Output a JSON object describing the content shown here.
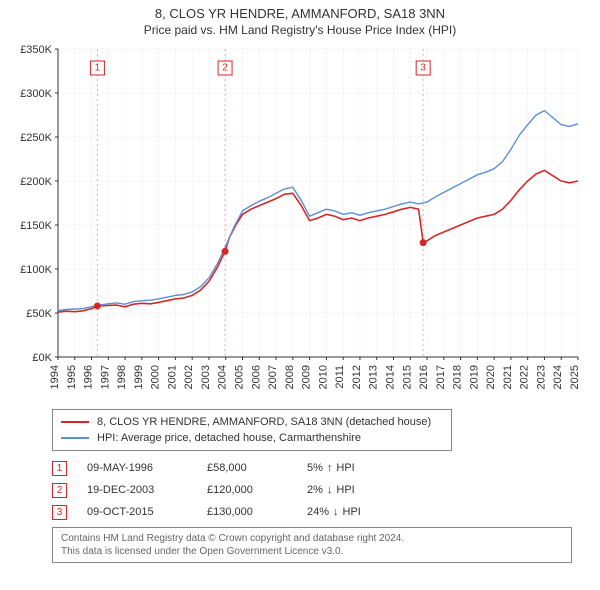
{
  "title": "8, CLOS YR HENDRE, AMMANFORD, SA18 3NN",
  "subtitle": "Price paid vs. HM Land Registry's House Price Index (HPI)",
  "chart": {
    "type": "line",
    "background_color": "#ffffff",
    "grid_color": "#dddddd",
    "axis_color": "#333333",
    "marker_rule_color": "#fca5a5",
    "y": {
      "min": 0,
      "max": 350000,
      "tick_step": 50000,
      "format_prefix": "£",
      "format_suffix": "K",
      "divide": 1000
    },
    "x": {
      "min": 1994,
      "max": 2025,
      "tick_step": 1
    },
    "series": [
      {
        "id": "price_paid",
        "label": "8, CLOS YR HENDRE, AMMANFORD, SA18 3NN (detached house)",
        "color": "#d62728",
        "width": 1.6,
        "points": [
          [
            1994.0,
            51000
          ],
          [
            1994.5,
            52000
          ],
          [
            1995.0,
            51500
          ],
          [
            1995.5,
            52500
          ],
          [
            1996.0,
            55000
          ],
          [
            1996.4,
            58000
          ],
          [
            1997.0,
            58500
          ],
          [
            1997.5,
            59000
          ],
          [
            1998.0,
            57000
          ],
          [
            1998.5,
            60000
          ],
          [
            1999.0,
            61000
          ],
          [
            1999.5,
            60500
          ],
          [
            2000.0,
            62000
          ],
          [
            2000.5,
            64000
          ],
          [
            2001.0,
            66000
          ],
          [
            2001.5,
            67000
          ],
          [
            2002.0,
            70000
          ],
          [
            2002.5,
            76000
          ],
          [
            2003.0,
            86000
          ],
          [
            2003.5,
            102000
          ],
          [
            2003.96,
            120000
          ],
          [
            2004.2,
            135000
          ],
          [
            2004.6,
            150000
          ],
          [
            2005.0,
            162000
          ],
          [
            2005.5,
            168000
          ],
          [
            2006.0,
            172000
          ],
          [
            2006.5,
            176000
          ],
          [
            2007.0,
            180000
          ],
          [
            2007.5,
            185000
          ],
          [
            2008.0,
            186000
          ],
          [
            2008.5,
            172000
          ],
          [
            2009.0,
            155000
          ],
          [
            2009.5,
            158000
          ],
          [
            2010.0,
            162000
          ],
          [
            2010.5,
            160000
          ],
          [
            2011.0,
            156000
          ],
          [
            2011.5,
            158000
          ],
          [
            2012.0,
            155000
          ],
          [
            2012.5,
            158000
          ],
          [
            2013.0,
            160000
          ],
          [
            2013.5,
            162000
          ],
          [
            2014.0,
            165000
          ],
          [
            2014.5,
            168000
          ],
          [
            2015.0,
            170000
          ],
          [
            2015.5,
            168000
          ],
          [
            2015.77,
            130000
          ],
          [
            2016.0,
            132000
          ],
          [
            2016.5,
            138000
          ],
          [
            2017.0,
            142000
          ],
          [
            2017.5,
            146000
          ],
          [
            2018.0,
            150000
          ],
          [
            2018.5,
            154000
          ],
          [
            2019.0,
            158000
          ],
          [
            2019.5,
            160000
          ],
          [
            2020.0,
            162000
          ],
          [
            2020.5,
            168000
          ],
          [
            2021.0,
            178000
          ],
          [
            2021.5,
            190000
          ],
          [
            2022.0,
            200000
          ],
          [
            2022.5,
            208000
          ],
          [
            2023.0,
            212000
          ],
          [
            2023.5,
            206000
          ],
          [
            2024.0,
            200000
          ],
          [
            2024.5,
            198000
          ],
          [
            2025.0,
            200000
          ]
        ],
        "markers": [
          {
            "n": "1",
            "x": 1996.35,
            "y": 58000
          },
          {
            "n": "2",
            "x": 2003.96,
            "y": 120000
          },
          {
            "n": "3",
            "x": 2015.77,
            "y": 130000
          }
        ]
      },
      {
        "id": "hpi",
        "label": "HPI: Average price, detached house, Carmarthenshire",
        "color": "#5b8fd6",
        "width": 1.4,
        "points": [
          [
            1994.0,
            53000
          ],
          [
            1994.5,
            54000
          ],
          [
            1995.0,
            54500
          ],
          [
            1995.5,
            55000
          ],
          [
            1996.0,
            57000
          ],
          [
            1996.5,
            59000
          ],
          [
            1997.0,
            60500
          ],
          [
            1997.5,
            61500
          ],
          [
            1998.0,
            60000
          ],
          [
            1998.5,
            63000
          ],
          [
            1999.0,
            64000
          ],
          [
            1999.5,
            64500
          ],
          [
            2000.0,
            66000
          ],
          [
            2000.5,
            68000
          ],
          [
            2001.0,
            70000
          ],
          [
            2001.5,
            71000
          ],
          [
            2002.0,
            74000
          ],
          [
            2002.5,
            80000
          ],
          [
            2003.0,
            90000
          ],
          [
            2003.5,
            106000
          ],
          [
            2004.0,
            126000
          ],
          [
            2004.5,
            148000
          ],
          [
            2005.0,
            166000
          ],
          [
            2005.5,
            172000
          ],
          [
            2006.0,
            177000
          ],
          [
            2006.5,
            181000
          ],
          [
            2007.0,
            186000
          ],
          [
            2007.5,
            191000
          ],
          [
            2008.0,
            193000
          ],
          [
            2008.5,
            178000
          ],
          [
            2009.0,
            160000
          ],
          [
            2009.5,
            164000
          ],
          [
            2010.0,
            168000
          ],
          [
            2010.5,
            166000
          ],
          [
            2011.0,
            162000
          ],
          [
            2011.5,
            164000
          ],
          [
            2012.0,
            161000
          ],
          [
            2012.5,
            164000
          ],
          [
            2013.0,
            166000
          ],
          [
            2013.5,
            168000
          ],
          [
            2014.0,
            171000
          ],
          [
            2014.5,
            174000
          ],
          [
            2015.0,
            176000
          ],
          [
            2015.5,
            174000
          ],
          [
            2016.0,
            176000
          ],
          [
            2016.5,
            182000
          ],
          [
            2017.0,
            187000
          ],
          [
            2017.5,
            192000
          ],
          [
            2018.0,
            197000
          ],
          [
            2018.5,
            202000
          ],
          [
            2019.0,
            207000
          ],
          [
            2019.5,
            210000
          ],
          [
            2020.0,
            214000
          ],
          [
            2020.5,
            222000
          ],
          [
            2021.0,
            236000
          ],
          [
            2021.5,
            252000
          ],
          [
            2022.0,
            264000
          ],
          [
            2022.5,
            275000
          ],
          [
            2023.0,
            280000
          ],
          [
            2023.5,
            272000
          ],
          [
            2024.0,
            264000
          ],
          [
            2024.5,
            262000
          ],
          [
            2025.0,
            265000
          ]
        ]
      }
    ]
  },
  "legend": {
    "rows": [
      {
        "color": "#d62728",
        "label": "8, CLOS YR HENDRE, AMMANFORD, SA18 3NN (detached house)"
      },
      {
        "color": "#5b8fd6",
        "label": "HPI: Average price, detached house, Carmarthenshire"
      }
    ]
  },
  "events": [
    {
      "n": "1",
      "date": "09-MAY-1996",
      "price": "£58,000",
      "delta_pct": "5%",
      "arrow": "↑",
      "delta_label": "HPI"
    },
    {
      "n": "2",
      "date": "19-DEC-2003",
      "price": "£120,000",
      "delta_pct": "2%",
      "arrow": "↓",
      "delta_label": "HPI"
    },
    {
      "n": "3",
      "date": "09-OCT-2015",
      "price": "£130,000",
      "delta_pct": "24%",
      "arrow": "↓",
      "delta_label": "HPI"
    }
  ],
  "license": {
    "line1": "Contains HM Land Registry data © Crown copyright and database right 2024.",
    "line2": "This data is licensed under the Open Government Licence v3.0."
  }
}
